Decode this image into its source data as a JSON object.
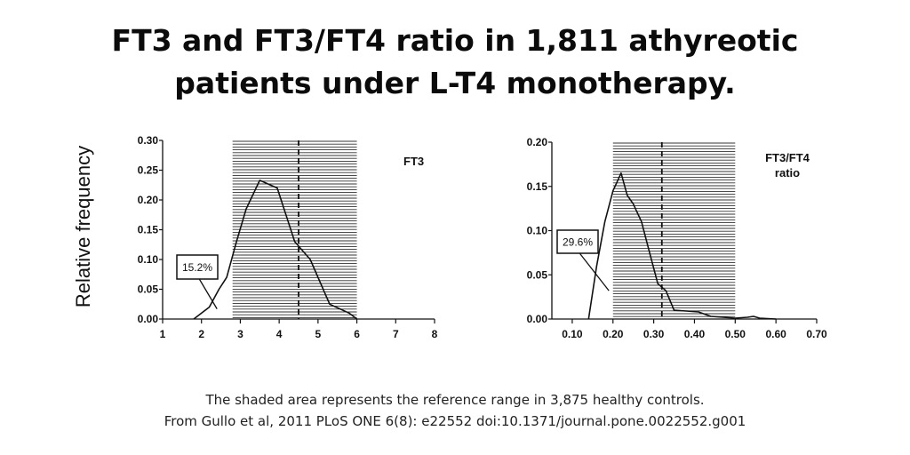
{
  "title": {
    "line1": "FT3 and FT3/FT4 ratio in 1,811 athyreotic",
    "line2": "patients under L-T4 monotherapy."
  },
  "ylabel": "Relative frequency",
  "footer": {
    "line1": "The shaded area represents the reference range in 3,875 healthy controls.",
    "line2": "From Gullo et al, 2011 PLoS ONE 6(8): e22552 doi:10.1371/journal.pone.0022552.g001"
  },
  "chart_data": [
    {
      "type": "line",
      "legend": "FT3",
      "ylabel": "Relative frequency",
      "xlim": [
        1,
        8
      ],
      "ylim": [
        0,
        0.3
      ],
      "xticks": [
        "1",
        "2",
        "3",
        "4",
        "5",
        "6",
        "7",
        "8"
      ],
      "yticks": [
        "0.00",
        "0.05",
        "0.10",
        "0.15",
        "0.20",
        "0.25",
        "0.30"
      ],
      "x": [
        1.8,
        2.2,
        2.45,
        2.65,
        2.9,
        3.15,
        3.5,
        3.95,
        4.4,
        4.8,
        5.3,
        5.8,
        6.0
      ],
      "y": [
        0.0,
        0.02,
        0.05,
        0.07,
        0.13,
        0.185,
        0.233,
        0.22,
        0.13,
        0.1,
        0.025,
        0.01,
        0.0
      ],
      "reference_range": [
        2.8,
        6.0
      ],
      "reference_line": 4.5,
      "annotation": {
        "text": "15.2%",
        "x": 2.4,
        "y": 0.017
      }
    },
    {
      "type": "line",
      "legend_lines": [
        "FT3/FT4",
        "ratio"
      ],
      "xlim": [
        0.05,
        0.7
      ],
      "ylim": [
        0,
        0.2
      ],
      "xticks": [
        "0.10",
        "0.20",
        "0.30",
        "0.40",
        "0.50",
        "0.60",
        "0.70"
      ],
      "yticks": [
        "0.00",
        "0.05",
        "0.10",
        "0.15",
        "0.20"
      ],
      "x": [
        0.14,
        0.16,
        0.18,
        0.2,
        0.22,
        0.235,
        0.25,
        0.27,
        0.29,
        0.31,
        0.33,
        0.35,
        0.38,
        0.41,
        0.44,
        0.47,
        0.5,
        0.53,
        0.545,
        0.56,
        0.6
      ],
      "y": [
        0.0,
        0.06,
        0.11,
        0.145,
        0.165,
        0.14,
        0.13,
        0.11,
        0.075,
        0.04,
        0.032,
        0.01,
        0.009,
        0.008,
        0.003,
        0.002,
        0.001,
        0.002,
        0.003,
        0.001,
        0.0
      ],
      "reference_range": [
        0.2,
        0.5
      ],
      "reference_line": 0.32,
      "annotation": {
        "text": "29.6%",
        "x": 0.19,
        "y": 0.032
      }
    }
  ]
}
